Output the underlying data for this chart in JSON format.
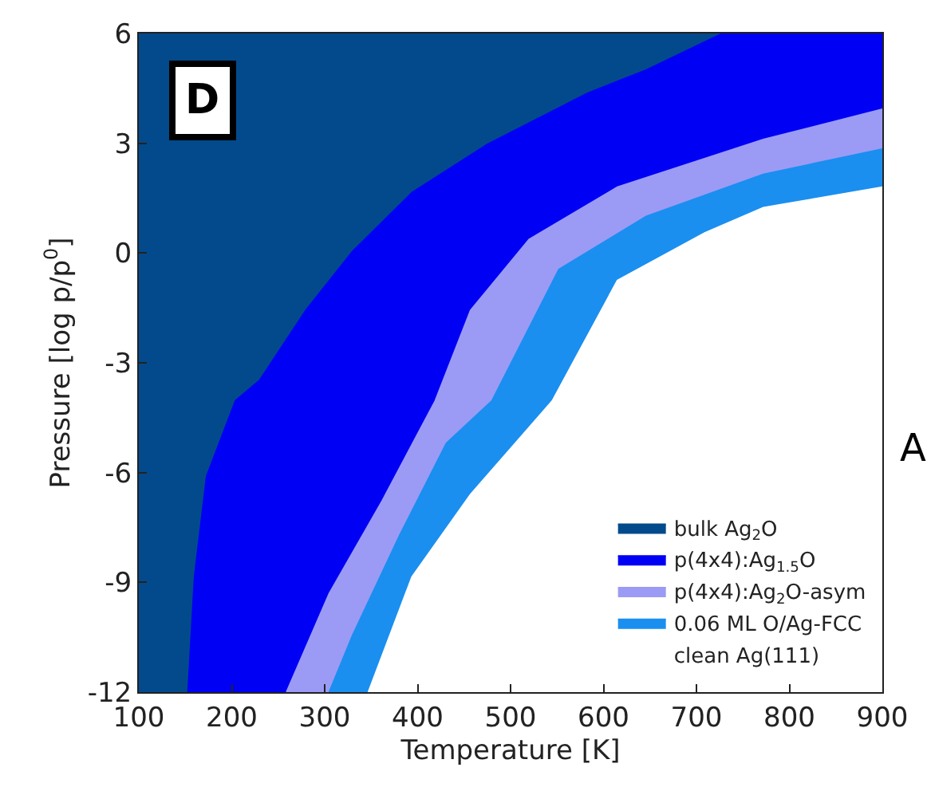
{
  "chart_data": {
    "type": "area",
    "xlabel": "Temperature [K]",
    "ylabel": "Pressure [log p/p$^{0}$]",
    "xlim": [
      100,
      900
    ],
    "ylim": [
      -12,
      6
    ],
    "xticks": [
      100,
      200,
      300,
      400,
      500,
      600,
      700,
      800,
      900
    ],
    "yticks": [
      -12,
      -9,
      -6,
      -3,
      0,
      3,
      6
    ],
    "legend": "bottom right",
    "annotations": [
      "D",
      "A"
    ],
    "series": [
      {
        "name": "bulk Ag$_{2}$O",
        "color": "#034a8c",
        "x": [
          153,
          160,
          173,
          204,
          230,
          280,
          330,
          394,
          475,
          583,
          646,
          728,
          100,
          100
        ],
        "values": [
          -12,
          -8.85,
          -6.1,
          -4.04,
          -3.48,
          -1.56,
          0.04,
          1.65,
          2.97,
          4.37,
          5.0,
          6,
          6,
          -12
        ]
      },
      {
        "name": "p(4x4):Ag$_{1.5}$O",
        "color": "#0000f5",
        "x": [
          259,
          305,
          362,
          419,
          457,
          520,
          615,
          772,
          900,
          900,
          728,
          646,
          583,
          475,
          394,
          330,
          280,
          230,
          204,
          173,
          160,
          153
        ],
        "values": [
          -12,
          -9.3,
          -6.77,
          -4.04,
          -1.57,
          0.37,
          1.8,
          3.1,
          3.93,
          6,
          6,
          5.0,
          4.37,
          2.97,
          1.65,
          0.04,
          -1.56,
          -3.48,
          -4.04,
          -6.1,
          -8.85,
          -12
        ]
      },
      {
        "name": "p(4x4):Ag$_{2}$O-asym",
        "color": "#9b9bf5",
        "x": [
          305,
          330,
          381,
          431,
          480,
          552,
          646,
          772,
          900,
          900,
          772,
          615,
          520,
          457,
          419,
          362,
          305,
          259
        ],
        "values": [
          -12,
          -10.45,
          -7.7,
          -5.2,
          -4.04,
          -0.45,
          1.0,
          2.15,
          2.84,
          3.93,
          3.1,
          1.8,
          0.37,
          -1.57,
          -4.04,
          -6.77,
          -9.3,
          -12
        ]
      },
      {
        "name": "0.06 ML O/Ag-FCC",
        "color": "#1a8ff0",
        "x": [
          347,
          394,
          457,
          545,
          615,
          709,
          772,
          900,
          900,
          772,
          646,
          552,
          480,
          431,
          381,
          330,
          305
        ],
        "values": [
          -12,
          -8.85,
          -6.6,
          -4.04,
          -0.75,
          0.55,
          1.24,
          1.8,
          2.84,
          2.15,
          1.0,
          -0.45,
          -4.04,
          -5.2,
          -7.7,
          -10.45,
          -12
        ]
      },
      {
        "name": "clean Ag(111)",
        "color": "#ffffff",
        "x": [
          347,
          394,
          457,
          545,
          615,
          709,
          772,
          900,
          900
        ],
        "values": [
          -12,
          -8.85,
          -6.6,
          -4.04,
          -0.75,
          0.55,
          1.24,
          1.8,
          -12
        ]
      }
    ]
  }
}
